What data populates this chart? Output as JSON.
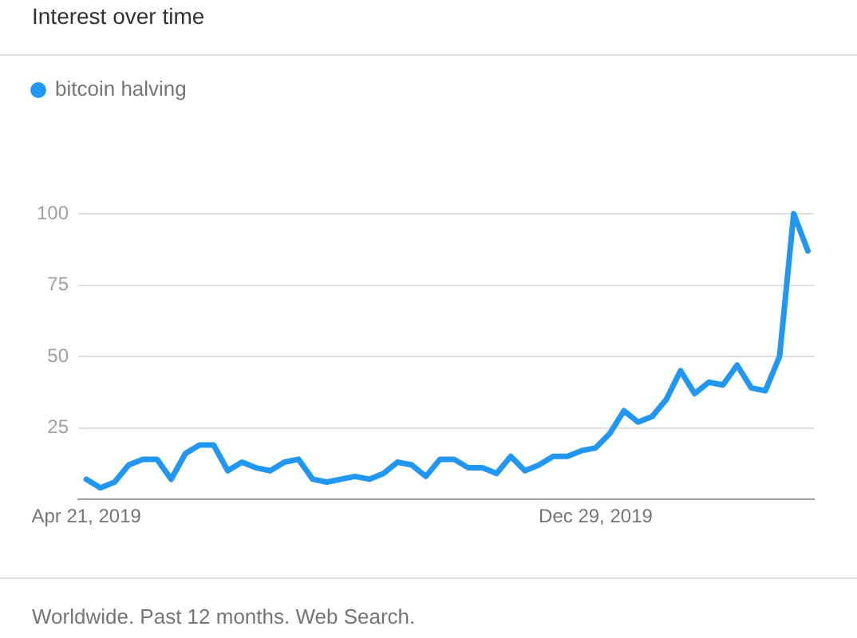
{
  "chart_data": {
    "type": "line",
    "title": "Interest over time",
    "x": [
      "2019-04-21",
      "2019-04-28",
      "2019-05-05",
      "2019-05-12",
      "2019-05-19",
      "2019-05-26",
      "2019-06-02",
      "2019-06-09",
      "2019-06-16",
      "2019-06-23",
      "2019-06-30",
      "2019-07-07",
      "2019-07-14",
      "2019-07-21",
      "2019-07-28",
      "2019-08-04",
      "2019-08-11",
      "2019-08-18",
      "2019-08-25",
      "2019-09-01",
      "2019-09-08",
      "2019-09-15",
      "2019-09-22",
      "2019-09-29",
      "2019-10-06",
      "2019-10-13",
      "2019-10-20",
      "2019-10-27",
      "2019-11-03",
      "2019-11-10",
      "2019-11-17",
      "2019-11-24",
      "2019-12-01",
      "2019-12-08",
      "2019-12-15",
      "2019-12-22",
      "2019-12-29",
      "2020-01-05",
      "2020-01-12",
      "2020-01-19",
      "2020-01-26",
      "2020-02-02",
      "2020-02-09",
      "2020-02-16",
      "2020-02-23",
      "2020-03-01",
      "2020-03-08",
      "2020-03-15",
      "2020-03-22",
      "2020-03-29",
      "2020-04-05",
      "2020-04-12"
    ],
    "series": [
      {
        "name": "bitcoin halving",
        "color": "#2196f3",
        "values": [
          7,
          4,
          6,
          12,
          14,
          14,
          7,
          16,
          19,
          19,
          10,
          13,
          11,
          10,
          13,
          14,
          7,
          6,
          7,
          8,
          7,
          9,
          13,
          12,
          8,
          14,
          14,
          11,
          11,
          9,
          15,
          10,
          12,
          15,
          15,
          17,
          18,
          23,
          31,
          27,
          29,
          35,
          45,
          37,
          41,
          40,
          47,
          39,
          38,
          50,
          100,
          87
        ]
      }
    ],
    "xlim": [
      "2019-04-17",
      "2020-04-15"
    ],
    "xticks": [
      {
        "value": "2019-04-21",
        "label": "Apr 21, 2019"
      },
      {
        "value": "2019-12-29",
        "label": "Dec 29, 2019"
      }
    ],
    "ylim": [
      0,
      100
    ],
    "yticks": [
      25,
      50,
      75,
      100
    ],
    "grid": "y",
    "legend": "top left",
    "marker": "none",
    "annotations": [
      "Worldwide. Past 12 months. Web Search."
    ]
  }
}
